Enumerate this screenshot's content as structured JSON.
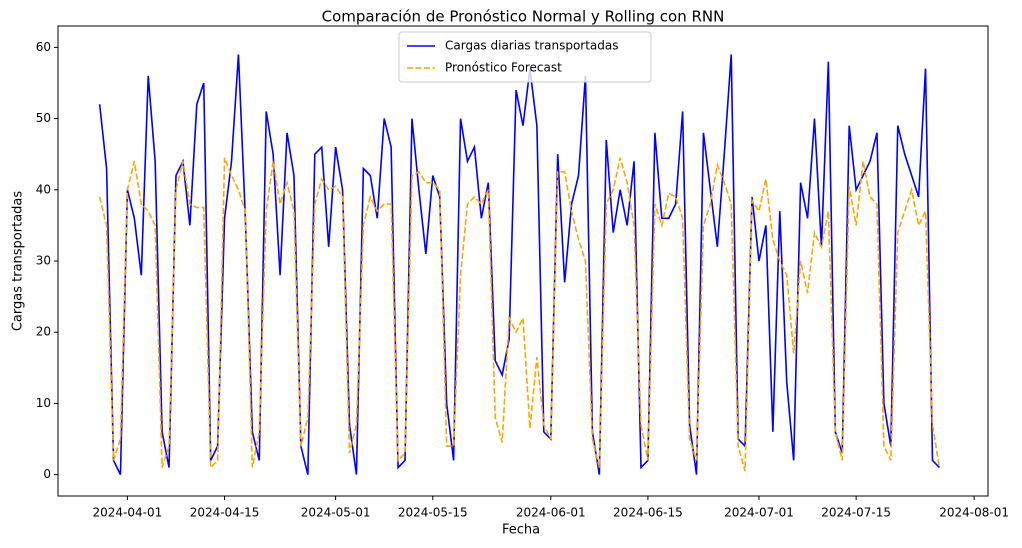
{
  "chart_data": {
    "type": "line",
    "title": "Comparación de Pronóstico Normal y Rolling con RNN",
    "x_label": "Fecha",
    "y_label": "Cargas transportadas",
    "legend": "upper center",
    "x": [
      "2024-03-28",
      "2024-03-29",
      "2024-03-30",
      "2024-03-31",
      "2024-04-01",
      "2024-04-02",
      "2024-04-03",
      "2024-04-04",
      "2024-04-05",
      "2024-04-06",
      "2024-04-07",
      "2024-04-08",
      "2024-04-09",
      "2024-04-10",
      "2024-04-11",
      "2024-04-12",
      "2024-04-13",
      "2024-04-14",
      "2024-04-15",
      "2024-04-16",
      "2024-04-17",
      "2024-04-18",
      "2024-04-19",
      "2024-04-20",
      "2024-04-21",
      "2024-04-22",
      "2024-04-23",
      "2024-04-24",
      "2024-04-25",
      "2024-04-26",
      "2024-04-27",
      "2024-04-28",
      "2024-04-29",
      "2024-04-30",
      "2024-05-01",
      "2024-05-02",
      "2024-05-03",
      "2024-05-04",
      "2024-05-05",
      "2024-05-06",
      "2024-05-07",
      "2024-05-08",
      "2024-05-09",
      "2024-05-10",
      "2024-05-11",
      "2024-05-12",
      "2024-05-13",
      "2024-05-14",
      "2024-05-15",
      "2024-05-16",
      "2024-05-17",
      "2024-05-18",
      "2024-05-19",
      "2024-05-20",
      "2024-05-21",
      "2024-05-22",
      "2024-05-23",
      "2024-05-24",
      "2024-05-25",
      "2024-05-26",
      "2024-05-27",
      "2024-05-28",
      "2024-05-29",
      "2024-05-30",
      "2024-05-31",
      "2024-06-01",
      "2024-06-02",
      "2024-06-03",
      "2024-06-04",
      "2024-06-05",
      "2024-06-06",
      "2024-06-07",
      "2024-06-08",
      "2024-06-09",
      "2024-06-10",
      "2024-06-11",
      "2024-06-12",
      "2024-06-13",
      "2024-06-14",
      "2024-06-15",
      "2024-06-16",
      "2024-06-17",
      "2024-06-18",
      "2024-06-19",
      "2024-06-20",
      "2024-06-21",
      "2024-06-22",
      "2024-06-23",
      "2024-06-24",
      "2024-06-25",
      "2024-06-26",
      "2024-06-27",
      "2024-06-28",
      "2024-06-29",
      "2024-06-30",
      "2024-07-01",
      "2024-07-02",
      "2024-07-03",
      "2024-07-04",
      "2024-07-05",
      "2024-07-06",
      "2024-07-07",
      "2024-07-08",
      "2024-07-09",
      "2024-07-10",
      "2024-07-11",
      "2024-07-12",
      "2024-07-13",
      "2024-07-14",
      "2024-07-15",
      "2024-07-16",
      "2024-07-17",
      "2024-07-18",
      "2024-07-19",
      "2024-07-20",
      "2024-07-21",
      "2024-07-22",
      "2024-07-23",
      "2024-07-24",
      "2024-07-25",
      "2024-07-26",
      "2024-07-27"
    ],
    "series": [
      {
        "name": "Cargas diarias transportadas",
        "color": "#0000ff",
        "dash": false,
        "values": [
          52,
          43,
          2,
          0,
          40,
          36,
          28,
          56,
          44,
          6,
          1,
          42,
          44,
          35,
          52,
          55,
          2,
          4,
          36,
          44,
          59,
          36,
          6,
          2,
          51,
          45,
          28,
          48,
          42,
          4,
          0,
          45,
          46,
          32,
          46,
          40,
          7,
          0,
          43,
          42,
          36,
          50,
          46,
          1,
          2,
          50,
          40,
          31,
          42,
          39,
          10,
          2,
          50,
          44,
          46,
          36,
          41,
          16,
          14,
          19,
          54,
          49,
          57,
          49,
          6,
          5,
          45,
          27,
          38,
          42,
          56,
          6,
          0,
          47,
          34,
          40,
          35,
          44,
          1,
          2,
          48,
          36,
          36,
          38,
          51,
          7,
          0,
          48,
          40,
          32,
          45,
          59,
          5,
          4,
          39,
          30,
          35,
          6,
          37,
          13,
          2,
          41,
          36,
          50,
          32,
          58,
          6,
          3,
          49,
          40,
          42,
          44,
          48,
          10,
          4,
          49,
          45,
          42,
          39,
          57,
          2,
          1
        ]
      },
      {
        "name": "Pronóstico Forecast",
        "color": "#ffa500",
        "dash": true,
        "values": [
          39,
          35,
          2,
          5,
          40,
          44,
          38,
          37,
          35,
          1,
          4,
          40,
          44,
          38,
          37.5,
          37.5,
          1,
          2,
          44.5,
          42,
          40,
          37,
          1,
          6,
          37,
          44,
          38,
          41,
          37,
          4,
          8,
          38,
          41.5,
          40,
          40.5,
          39,
          3,
          7,
          35,
          39,
          37,
          38,
          38,
          2,
          3,
          42,
          42.5,
          41,
          41,
          40,
          4,
          4,
          28,
          38,
          39,
          38,
          40,
          8,
          4.5,
          22,
          20,
          22,
          6.5,
          16.5,
          7,
          5,
          42.5,
          42.5,
          37,
          33,
          30,
          5,
          1,
          38,
          40,
          44.5,
          41,
          35,
          7,
          2,
          38,
          35,
          39.5,
          39,
          36,
          5,
          2,
          35,
          38,
          43.5,
          41,
          38,
          4,
          0.5,
          38.5,
          37,
          41.5,
          33,
          30,
          28,
          17,
          30,
          25.5,
          34,
          32,
          37,
          6,
          2,
          40.5,
          35,
          44,
          39,
          38,
          4,
          2,
          34,
          37,
          40,
          35,
          37,
          7,
          1
        ]
      }
    ],
    "xlim": [
      "2024-03-22",
      "2024-08-03"
    ],
    "xticks": [
      "2024-04-01",
      "2024-04-15",
      "2024-05-01",
      "2024-05-15",
      "2024-06-01",
      "2024-06-15",
      "2024-07-01",
      "2024-07-15",
      "2024-08-01"
    ],
    "ylim": [
      -3,
      63
    ],
    "yticks": [
      0,
      10,
      20,
      30,
      40,
      50,
      60
    ]
  }
}
